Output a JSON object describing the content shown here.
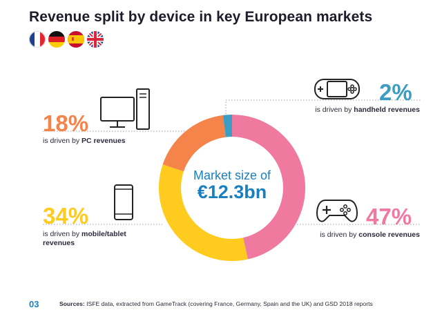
{
  "title": "Revenue split by device in key European markets",
  "flags": [
    {
      "name": "france-flag-icon"
    },
    {
      "name": "germany-flag-icon"
    },
    {
      "name": "spain-flag-icon"
    },
    {
      "name": "uk-flag-icon"
    }
  ],
  "center": {
    "label": "Market size of",
    "value": "€12.3bn"
  },
  "segments": {
    "pc": {
      "percent_text": "18%",
      "prefix": "is driven by ",
      "label": "PC revenues"
    },
    "mobile": {
      "percent_text": "34%",
      "prefix": "is driven by ",
      "label_line1": "mobile/tablet",
      "label_line2": "revenues"
    },
    "handheld": {
      "percent_text": "2%",
      "prefix": "is driven by ",
      "label": "handheld revenues"
    },
    "console": {
      "percent_text": "47%",
      "prefix": "is driven by ",
      "label": "console revenues"
    }
  },
  "colors": {
    "console": "#f07a9f",
    "mobile": "#ffcb1f",
    "pc": "#f4844a",
    "handheld": "#3c9cc1",
    "accent": "#1a7fc0"
  },
  "chart_data": {
    "type": "pie",
    "title": "Revenue split by device in key European markets",
    "center_text": [
      "Market size of",
      "€12.3bn"
    ],
    "categories": [
      "Console",
      "Mobile/tablet",
      "PC",
      "Handheld"
    ],
    "values": [
      47,
      34,
      18,
      2
    ],
    "unit": "%"
  },
  "footer": {
    "page": "03",
    "sources_label": "Sources:",
    "sources_text": " ISFE data, extracted from GameTrack (covering France, Germany, Spain and the UK) and GSD 2018 reports"
  }
}
